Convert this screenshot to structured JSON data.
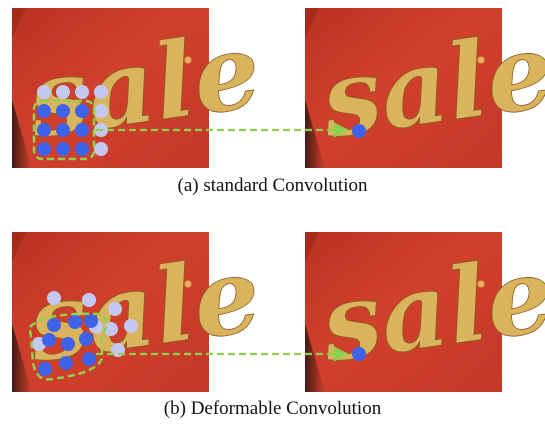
{
  "image_text": "sale",
  "captions": {
    "a": "(a)  standard Convolution",
    "b": "(b)  Deformable Convolution"
  },
  "colors": {
    "background_red": "#c7321f",
    "script_gold": "#d9b45c",
    "sampling_dot": "#3f63e8",
    "offset_dot": "#c3c8f0",
    "arrow_green": "#8fd14f"
  }
}
